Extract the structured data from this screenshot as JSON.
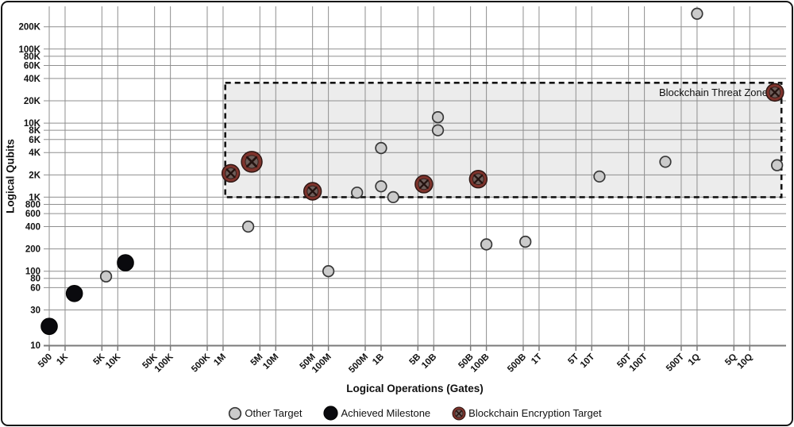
{
  "chart_data": {
    "type": "scatter",
    "xlabel": "Logical Operations (Gates)",
    "ylabel": "Logical Qubits",
    "x_scale": "log",
    "y_scale": "log",
    "x_range": [
      390,
      5e+16
    ],
    "y_range": [
      10,
      380000
    ],
    "grid": true,
    "x_ticks": [
      {
        "label": "500",
        "value": 500
      },
      {
        "label": "1K",
        "value": 1000
      },
      {
        "label": "5K",
        "value": 5000
      },
      {
        "label": "10K",
        "value": 10000
      },
      {
        "label": "50K",
        "value": 50000
      },
      {
        "label": "100K",
        "value": 100000
      },
      {
        "label": "500K",
        "value": 500000
      },
      {
        "label": "1M",
        "value": 1000000
      },
      {
        "label": "5M",
        "value": 5000000
      },
      {
        "label": "10M",
        "value": 10000000
      },
      {
        "label": "50M",
        "value": 50000000
      },
      {
        "label": "100M",
        "value": 100000000
      },
      {
        "label": "500M",
        "value": 500000000
      },
      {
        "label": "1B",
        "value": 1000000000.0
      },
      {
        "label": "5B",
        "value": 5000000000.0
      },
      {
        "label": "10B",
        "value": 10000000000.0
      },
      {
        "label": "50B",
        "value": 50000000000.0
      },
      {
        "label": "100B",
        "value": 100000000000.0
      },
      {
        "label": "500B",
        "value": 500000000000.0
      },
      {
        "label": "1T",
        "value": 1000000000000.0
      },
      {
        "label": "5T",
        "value": 5000000000000.0
      },
      {
        "label": "10T",
        "value": 10000000000000.0
      },
      {
        "label": "50T",
        "value": 50000000000000.0
      },
      {
        "label": "100T",
        "value": 100000000000000.0
      },
      {
        "label": "500T",
        "value": 500000000000000.0
      },
      {
        "label": "1Q",
        "value": 1000000000000000.0
      },
      {
        "label": "5Q",
        "value": 5000000000000000.0
      },
      {
        "label": "10Q",
        "value": 1e+16
      }
    ],
    "y_ticks": [
      {
        "label": "10",
        "value": 10
      },
      {
        "label": "30",
        "value": 30
      },
      {
        "label": "60",
        "value": 60
      },
      {
        "label": "80",
        "value": 80
      },
      {
        "label": "100",
        "value": 100
      },
      {
        "label": "200",
        "value": 200
      },
      {
        "label": "400",
        "value": 400
      },
      {
        "label": "600",
        "value": 600
      },
      {
        "label": "800",
        "value": 800
      },
      {
        "label": "1K",
        "value": 1000
      },
      {
        "label": "2K",
        "value": 2000
      },
      {
        "label": "4K",
        "value": 4000
      },
      {
        "label": "6K",
        "value": 6000
      },
      {
        "label": "8K",
        "value": 8000
      },
      {
        "label": "10K",
        "value": 10000
      },
      {
        "label": "20K",
        "value": 20000
      },
      {
        "label": "40K",
        "value": 40000
      },
      {
        "label": "60K",
        "value": 60000
      },
      {
        "label": "80K",
        "value": 80000
      },
      {
        "label": "100K",
        "value": 100000
      },
      {
        "label": "200K",
        "value": 200000
      }
    ],
    "series": [
      {
        "name": "Other Target",
        "marker": "circle",
        "color": "#cbcbcb",
        "stroke": "#383838",
        "stroke_width": 1.7,
        "r": 6.8,
        "points": [
          {
            "x": 6000,
            "y": 85
          },
          {
            "x": 3000000,
            "y": 400
          },
          {
            "x": 100000000.0,
            "y": 100
          },
          {
            "x": 350000000.0,
            "y": 1150
          },
          {
            "x": 1000000000.0,
            "y": 1400
          },
          {
            "x": 1700000000.0,
            "y": 1000
          },
          {
            "x": 1000000000.0,
            "y": 4600
          },
          {
            "x": 12000000000.0,
            "y": 12000
          },
          {
            "x": 12000000000.0,
            "y": 8000
          },
          {
            "x": 100000000000.0,
            "y": 230
          },
          {
            "x": 550000000000.0,
            "y": 250
          },
          {
            "x": 14000000000000.0,
            "y": 1900
          },
          {
            "x": 250000000000000.0,
            "y": 3000
          },
          {
            "x": 1000000000000000.0,
            "y": 300000
          },
          {
            "x": 3.3e+16,
            "y": 2700
          }
        ]
      },
      {
        "name": "Achieved Milestone",
        "marker": "circle",
        "color": "#0a0a0e",
        "stroke": "#000000",
        "stroke_width": 1,
        "r": 10.3,
        "points": [
          {
            "x": 500,
            "y": 18
          },
          {
            "x": 1500,
            "y": 50
          },
          {
            "x": 14000,
            "y": 130
          }
        ]
      },
      {
        "name": "Blockchain Encryption Target",
        "marker": "crossed-circle",
        "ring": "#7e332c",
        "inner": "#6e5e5a",
        "cross": "#241310",
        "outline": "#2b1512",
        "r": 11,
        "points": [
          {
            "x": 1400000,
            "y": 2100
          },
          {
            "x": 3500000,
            "y": 3000,
            "r": 13
          },
          {
            "x": 50000000.0,
            "y": 1200
          },
          {
            "x": 6500000000.0,
            "y": 1500
          },
          {
            "x": 70000000000.0,
            "y": 1750
          },
          {
            "x": 3e+16,
            "y": 26000
          }
        ]
      }
    ],
    "zone": {
      "label": "Blockchain Threat Zone",
      "x1": 1100000,
      "x2": 4e+16,
      "y1": 1000,
      "y2": 35000,
      "fill": "#ececec",
      "border_color": "#141414",
      "border_style": "dashed"
    },
    "colors": {
      "grid": "#8f8f8f",
      "axis": "#7a7a7a",
      "tick_text": "#111111",
      "background": "#ffffff"
    }
  },
  "legend": {
    "position": "bottom-center"
  }
}
